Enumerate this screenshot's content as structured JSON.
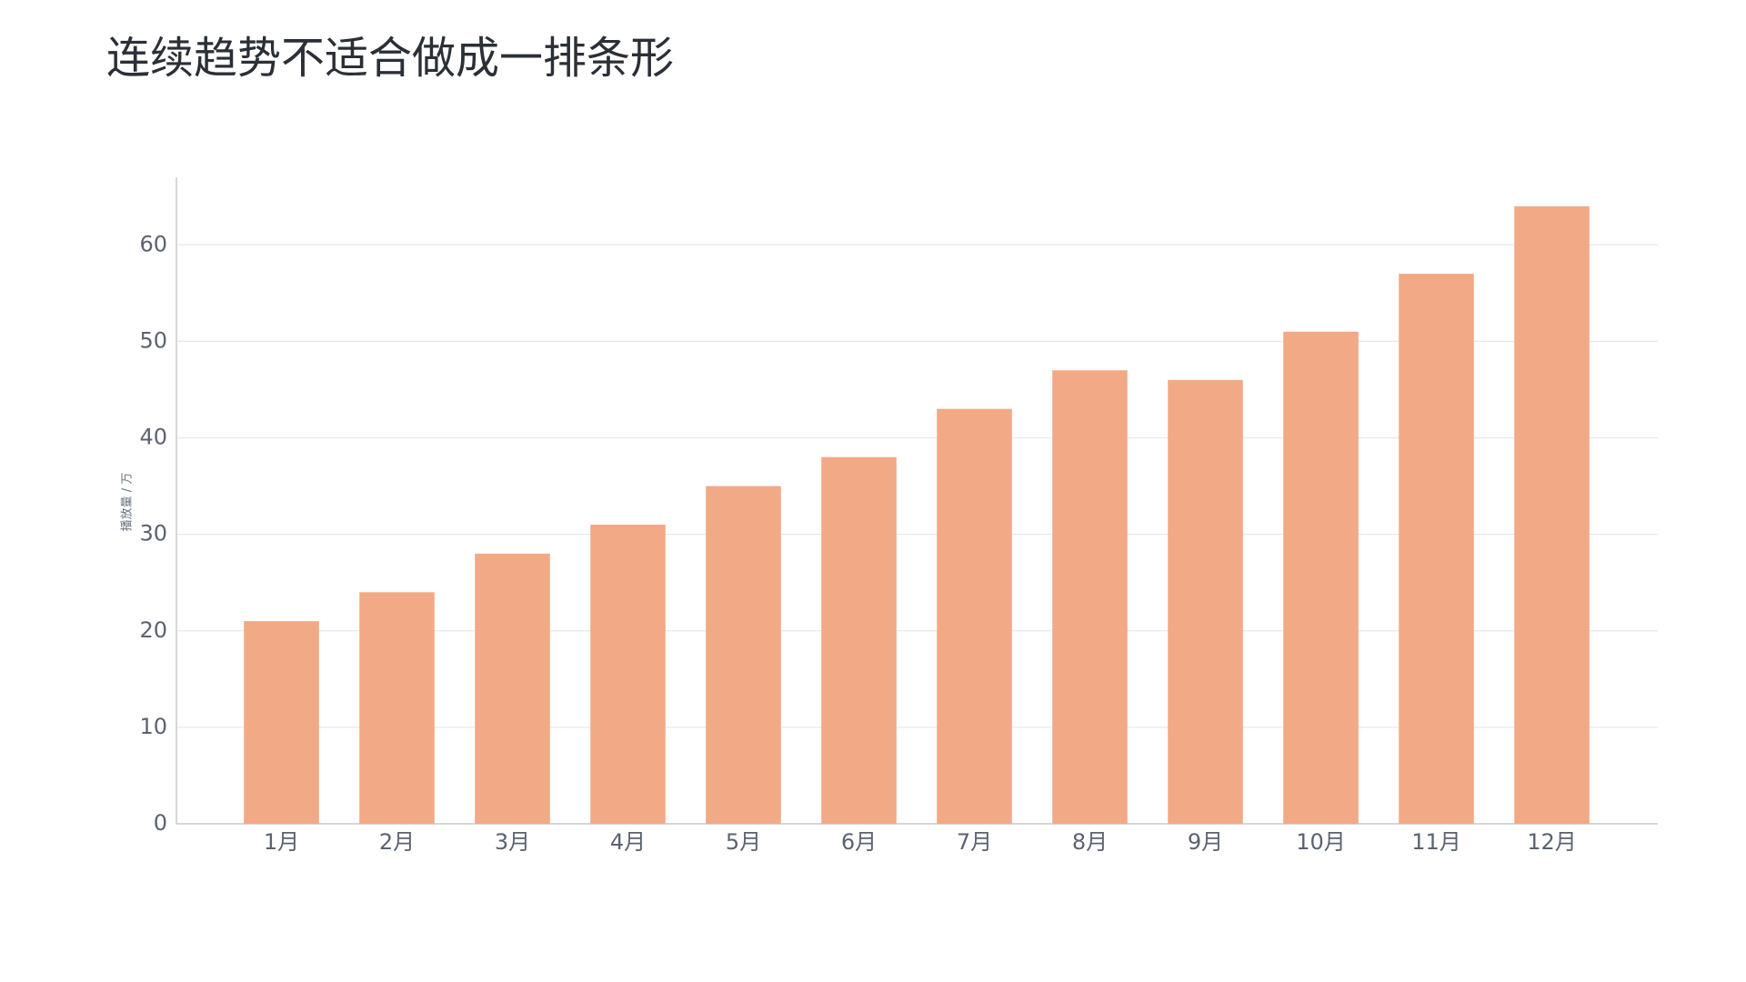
{
  "chart_data": {
    "type": "bar",
    "title": "连续趋势不适合做成一排条形",
    "y_label": "播放量 / 万",
    "categories": [
      "1月",
      "2月",
      "3月",
      "4月",
      "5月",
      "6月",
      "7月",
      "8月",
      "9月",
      "10月",
      "11月",
      "12月"
    ],
    "values": [
      21,
      24,
      28,
      31,
      35,
      38,
      43,
      47,
      46,
      51,
      57,
      64
    ],
    "color": "#f2a985",
    "ylim": [
      0,
      67
    ],
    "yticks": [
      0,
      10,
      20,
      30,
      40,
      50,
      60
    ],
    "grid": true
  }
}
